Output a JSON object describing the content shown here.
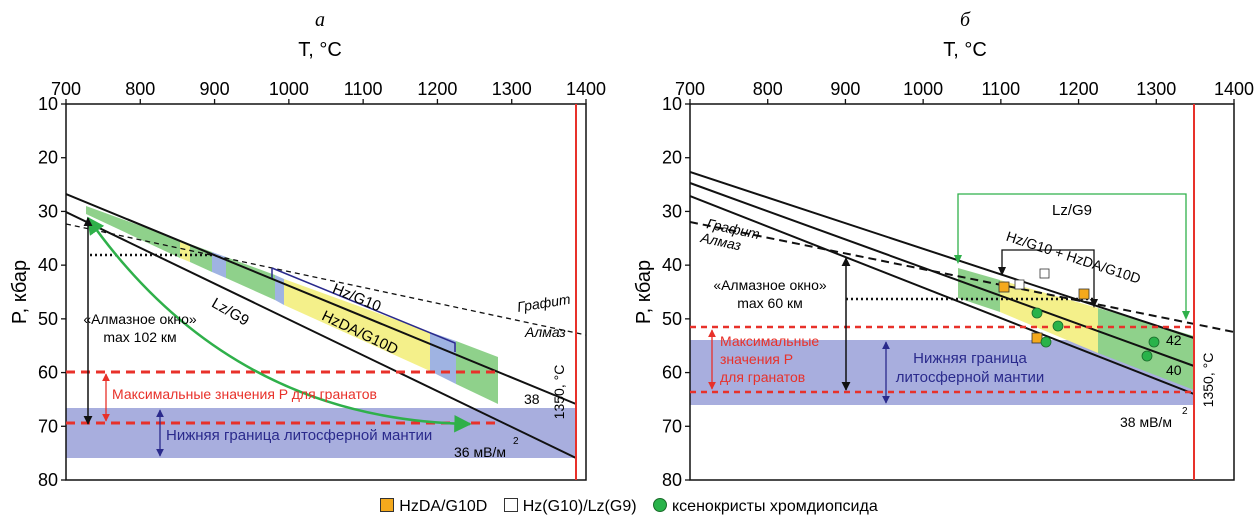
{
  "colors": {
    "green": "#8fd18b",
    "yellow": "#f4f08a",
    "blue": "#9fb3e2",
    "band": "#a8aede",
    "red": "#e8312a",
    "navy": "#2a2a8c",
    "arrow_green": "#2fb04a",
    "orange": "#f4a91c",
    "dot_green": "#29b34a"
  },
  "panels": [
    {
      "letter": "а",
      "x_title": "T, °C",
      "y_title": "P, кбар",
      "x_ticks": [
        700,
        800,
        900,
        1000,
        1100,
        1200,
        1300,
        1400
      ],
      "y_ticks": [
        10,
        20,
        30,
        40,
        50,
        60,
        70,
        80
      ],
      "texts": {
        "hz_g10": "Hz/G10",
        "hzda_g10d": "HzDA/G10D",
        "lz_g9": "Lz/G9",
        "grafit": "Графит",
        "almaz": "Алмаз",
        "window_1": "«Алмазное окно»",
        "window_2": "max 102 км",
        "max_p": "Максимальные значения P для гранатов",
        "lower_boundary": "Нижняя граница литосферной мантии",
        "geotherm_38": "38",
        "geotherm_36": "36 мВ/м",
        "sq_exp": "2",
        "iso": "1350, °C"
      }
    },
    {
      "letter": "б",
      "x_title": "T, °C",
      "y_title": "P, кбар",
      "x_ticks": [
        700,
        800,
        900,
        1000,
        1100,
        1200,
        1300,
        1400
      ],
      "y_ticks": [
        10,
        20,
        30,
        40,
        50,
        60,
        70,
        80
      ],
      "texts": {
        "lz_g9": "Lz/G9",
        "hz_combo": "Hz/G10 + HzDA/G10D",
        "grafit": "Графит",
        "almaz": "Алмаз",
        "window_1": "«Алмазное окно»",
        "window_2": "max 60 км",
        "max_p_1": "Максимальные",
        "max_p_2": "значения P",
        "max_p_3": "для гранатов",
        "lower_1": "Нижняя граница",
        "lower_2": "литосферной мантии",
        "geotherm_42": "42",
        "geotherm_40": "40",
        "geotherm_38": "38 мВ/м",
        "sq_exp": "2",
        "iso": "1350, °C"
      }
    }
  ],
  "legend": {
    "items": [
      {
        "label": "HzDA/G10D",
        "icon": "orange-square-icon"
      },
      {
        "label": "Hz(G10)/Lz(G9)",
        "icon": "white-square-icon"
      },
      {
        "label": "ксенокристы хромдиопсида",
        "icon": "green-circle-icon"
      }
    ]
  }
}
